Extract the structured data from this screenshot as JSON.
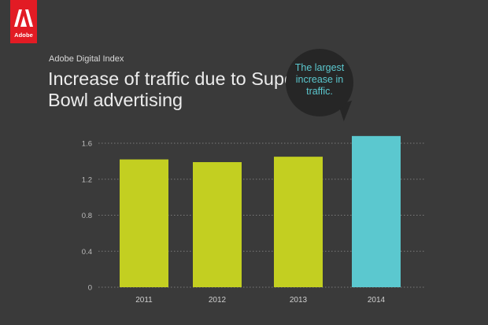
{
  "brand": {
    "logo_text": "Adobe"
  },
  "header": {
    "eyebrow": "Adobe Digital Index",
    "title": "Increase of traffic due to Super Bowl advertising"
  },
  "callout": {
    "text": "The largest increase in traffic."
  },
  "colors": {
    "background": "#3a3a3a",
    "brand_red": "#e21b24",
    "bar_primary": "#c3cf21",
    "bar_highlight": "#5bc8cf",
    "callout_text": "#5bc8cf"
  },
  "chart_data": {
    "type": "bar",
    "title": "Increase of traffic due to Super Bowl advertising",
    "xlabel": "",
    "ylabel": "",
    "categories": [
      "2011",
      "2012",
      "2013",
      "2014"
    ],
    "values": [
      1.42,
      1.39,
      1.45,
      1.68
    ],
    "highlight_index": 3,
    "ylim": [
      0,
      1.6
    ],
    "yticks": [
      "0",
      "0.4",
      "0.8",
      "1.2",
      "1.6"
    ],
    "ytick_values": [
      0,
      0.4,
      0.8,
      1.2,
      1.6
    ],
    "grid": true,
    "grid_style": "dotted",
    "legend": "none"
  }
}
